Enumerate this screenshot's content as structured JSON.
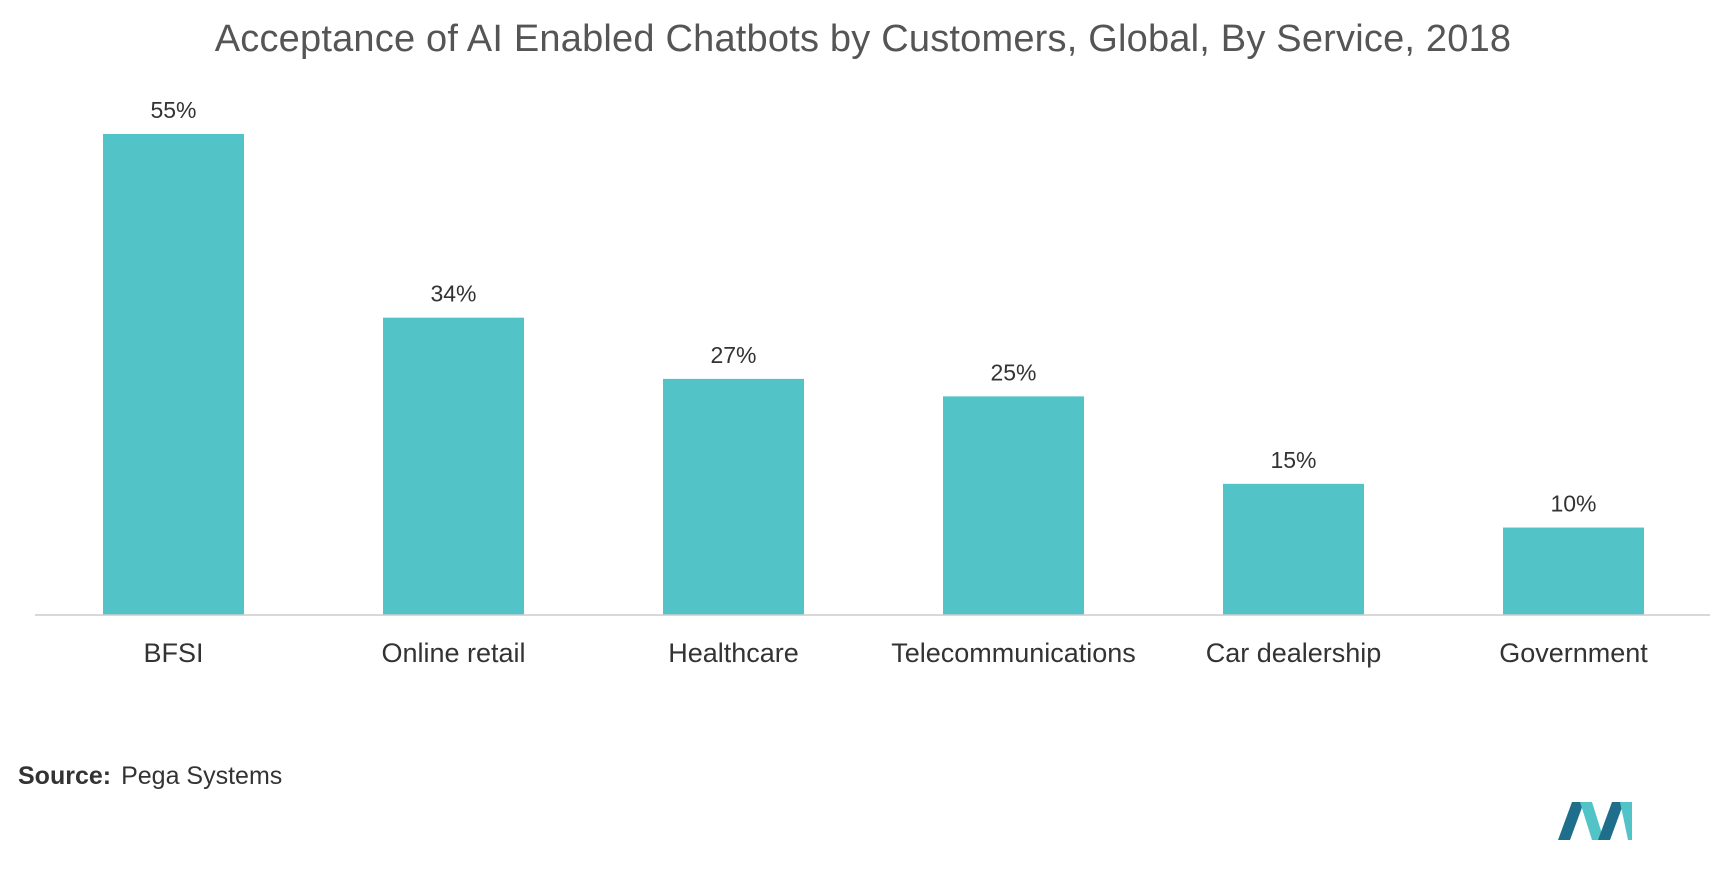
{
  "chart_data": {
    "type": "bar",
    "title": "Acceptance of AI Enabled Chatbots by Customers, Global, By Service, 2018",
    "categories": [
      "BFSI",
      "Online retail",
      "Healthcare",
      "Telecommunications",
      "Car dealership",
      "Government"
    ],
    "values": [
      55,
      34,
      27,
      25,
      15,
      10
    ],
    "value_labels": [
      "55%",
      "34%",
      "27%",
      "25%",
      "15%",
      "10%"
    ],
    "unit": "%",
    "xlabel": "",
    "ylabel": "",
    "ylim": [
      0,
      55
    ],
    "grid": false,
    "legend": "none"
  },
  "source": {
    "label": "Source:",
    "text": "Pega Systems"
  },
  "colors": {
    "bar": "#52c4c8",
    "axis": "#cccccc",
    "text": "#333333",
    "title": "#555555",
    "logo_dark": "#1f6e8c",
    "logo_light": "#52c4c8"
  },
  "logo": {
    "icon": "mordor-intelligence-logo-icon"
  }
}
